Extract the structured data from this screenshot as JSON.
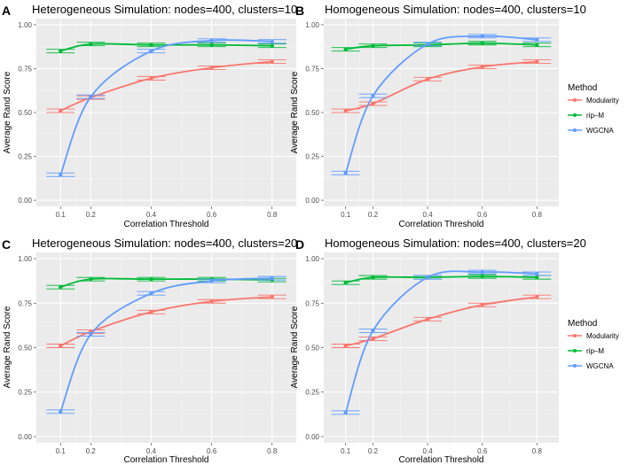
{
  "colors": {
    "panel_bg": "#EBEBEB",
    "grid_major": "#FFFFFF",
    "grid_minor": "#F5F5F5",
    "tick_text": "#4D4D4D",
    "Modularity": "#F8766D",
    "rip-M": "#00BA38",
    "WGCNA": "#619CFF"
  },
  "legend": {
    "title": "Method",
    "entries": [
      "Modularity",
      "rip–M",
      "WGCNA"
    ]
  },
  "chart_data": [
    {
      "type": "line",
      "letter": "A",
      "title": "Heterogeneous Simulation: nodes=400, clusters=10",
      "xlabel": "Correlation Threshold",
      "ylabel": "Average Rand Score",
      "xlim": [
        0.02,
        0.88
      ],
      "ylim": [
        -0.035,
        1.035
      ],
      "xticks": [
        0.1,
        0.2,
        0.4,
        0.6,
        0.8
      ],
      "xtick_labels": [
        "0.1",
        "0.2",
        "0.4",
        "0.6",
        "0.8"
      ],
      "yticks": [
        0,
        0.25,
        0.5,
        0.75,
        1
      ],
      "ytick_labels": [
        "0.00",
        "0.25",
        "0.50",
        "0.75",
        "1.00"
      ],
      "x": [
        0.1,
        0.2,
        0.4,
        0.6,
        0.8
      ],
      "series": [
        {
          "name": "Modularity",
          "values": [
            0.51,
            0.585,
            0.695,
            0.755,
            0.79
          ]
        },
        {
          "name": "rip-M",
          "values": [
            0.85,
            0.89,
            0.885,
            0.885,
            0.88
          ]
        },
        {
          "name": "WGCNA",
          "values": [
            0.145,
            0.59,
            0.85,
            0.91,
            0.905
          ]
        }
      ]
    },
    {
      "type": "line",
      "letter": "B",
      "title": "Homogeneous Simulation: nodes=400, clusters=10",
      "xlabel": "Correlation Threshold",
      "ylabel": "Average Rand Score",
      "xlim": [
        0.02,
        0.88
      ],
      "ylim": [
        -0.035,
        1.035
      ],
      "xticks": [
        0.1,
        0.2,
        0.4,
        0.6,
        0.8
      ],
      "xtick_labels": [
        "0.1",
        "0.2",
        "0.4",
        "0.6",
        "0.8"
      ],
      "yticks": [
        0,
        0.25,
        0.5,
        0.75,
        1
      ],
      "ytick_labels": [
        "0.00",
        "0.25",
        "0.50",
        "0.75",
        "1.00"
      ],
      "x": [
        0.1,
        0.2,
        0.4,
        0.6,
        0.8
      ],
      "series": [
        {
          "name": "Modularity",
          "values": [
            0.51,
            0.55,
            0.69,
            0.76,
            0.79
          ]
        },
        {
          "name": "rip-M",
          "values": [
            0.86,
            0.88,
            0.885,
            0.895,
            0.885
          ]
        },
        {
          "name": "WGCNA",
          "values": [
            0.155,
            0.595,
            0.89,
            0.935,
            0.915
          ]
        }
      ]
    },
    {
      "type": "line",
      "letter": "C",
      "title": "Heterogeneous Simulation: nodes=400, clusters=20",
      "xlabel": "Correlation Threshold",
      "ylabel": "Average Rand Score",
      "xlim": [
        0.02,
        0.88
      ],
      "ylim": [
        -0.035,
        1.035
      ],
      "xticks": [
        0.1,
        0.2,
        0.4,
        0.6,
        0.8
      ],
      "xtick_labels": [
        "0.1",
        "0.2",
        "0.4",
        "0.6",
        "0.8"
      ],
      "yticks": [
        0,
        0.25,
        0.5,
        0.75,
        1
      ],
      "ytick_labels": [
        "0.00",
        "0.25",
        "0.50",
        "0.75",
        "1.00"
      ],
      "x": [
        0.1,
        0.2,
        0.4,
        0.6,
        0.8
      ],
      "series": [
        {
          "name": "Modularity",
          "values": [
            0.51,
            0.59,
            0.7,
            0.76,
            0.785
          ]
        },
        {
          "name": "rip-M",
          "values": [
            0.84,
            0.885,
            0.885,
            0.885,
            0.88
          ]
        },
        {
          "name": "WGCNA",
          "values": [
            0.14,
            0.575,
            0.805,
            0.875,
            0.89
          ]
        }
      ]
    },
    {
      "type": "line",
      "letter": "D",
      "title": "Homogeneous Simulation: nodes=400, clusters=20",
      "xlabel": "Correlation Threshold",
      "ylabel": "Average Rand Score",
      "xlim": [
        0.02,
        0.88
      ],
      "ylim": [
        -0.035,
        1.035
      ],
      "xticks": [
        0.1,
        0.2,
        0.4,
        0.6,
        0.8
      ],
      "xtick_labels": [
        "0.1",
        "0.2",
        "0.4",
        "0.6",
        "0.8"
      ],
      "yticks": [
        0,
        0.25,
        0.5,
        0.75,
        1
      ],
      "ytick_labels": [
        "0.00",
        "0.25",
        "0.50",
        "0.75",
        "1.00"
      ],
      "x": [
        0.1,
        0.2,
        0.4,
        0.6,
        0.8
      ],
      "series": [
        {
          "name": "Modularity",
          "values": [
            0.51,
            0.55,
            0.66,
            0.74,
            0.785
          ]
        },
        {
          "name": "rip-M",
          "values": [
            0.865,
            0.895,
            0.895,
            0.9,
            0.895
          ]
        },
        {
          "name": "WGCNA",
          "values": [
            0.135,
            0.595,
            0.895,
            0.925,
            0.915
          ]
        }
      ]
    }
  ]
}
